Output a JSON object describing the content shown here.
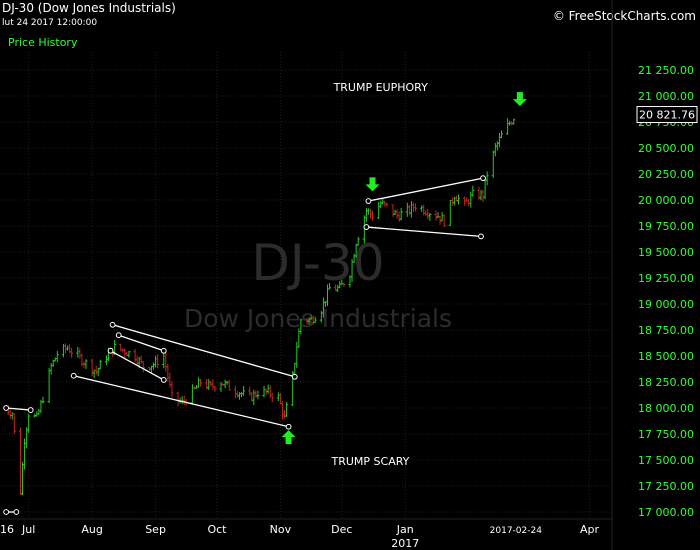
{
  "header": {
    "symbol_title": "DJ-30 (Dow Jones Industrials)",
    "datetime": "lut 24 2017 12:00:00",
    "price_history_label": "Price History",
    "brand": "© FreeStockCharts.com"
  },
  "watermark": {
    "symbol": "DJ-30",
    "name": "Dow Jones Industrials"
  },
  "colors": {
    "background": "#000000",
    "up_bar": "#22cc22",
    "down_bar": "#cc2222",
    "axis_text": "#33ff33",
    "trendline": "#ffffff",
    "arrow": "#22ee22",
    "watermark": "#2c2c2c"
  },
  "chart_data": {
    "type": "ohlc",
    "title": "DJ-30 (Dow Jones Industrials)",
    "ylim": [
      17000,
      21350
    ],
    "y_ticks": [
      17000,
      17250,
      17500,
      17750,
      18000,
      18250,
      18500,
      18750,
      19000,
      19250,
      19500,
      19750,
      20000,
      20250,
      20500,
      20750,
      21000,
      21250
    ],
    "y_tick_labels": [
      "17 000.00",
      "17 250.00",
      "17 500.00",
      "17 750.00",
      "18 000.00",
      "18 250.00",
      "18 500.00",
      "18 750.00",
      "19 000.00",
      "19 250.00",
      "19 500.00",
      "19 750.00",
      "20 000.00",
      "20 250.00",
      "20 500.00",
      "20 750.00",
      "21 000.00",
      "21 250.00"
    ],
    "last_price": 20821.76,
    "last_price_label": "20 821.76",
    "x_labels": [
      {
        "label": "16",
        "date": "2016-06-20"
      },
      {
        "label": "Jul",
        "date": "2016-07-01"
      },
      {
        "label": "Aug",
        "date": "2016-08-01"
      },
      {
        "label": "Sep",
        "date": "2016-09-01"
      },
      {
        "label": "Oct",
        "date": "2016-10-01"
      },
      {
        "label": "Nov",
        "date": "2016-11-01"
      },
      {
        "label": "Dec",
        "date": "2016-12-01"
      },
      {
        "label": "Jan",
        "date": "2017-01-01"
      },
      {
        "label": "2017-02-24",
        "date": "2017-02-24"
      },
      {
        "label": "Apr",
        "date": "2017-04-01"
      }
    ],
    "year_label": "2017",
    "closes": [
      {
        "date": "2016-06-20",
        "close": 18000
      },
      {
        "date": "2016-06-23",
        "close": 17950
      },
      {
        "date": "2016-06-27",
        "close": 17200
      },
      {
        "date": "2016-06-29",
        "close": 17700
      },
      {
        "date": "2016-07-01",
        "close": 17950
      },
      {
        "date": "2016-07-05",
        "close": 17900
      },
      {
        "date": "2016-07-08",
        "close": 18100
      },
      {
        "date": "2016-07-12",
        "close": 18400
      },
      {
        "date": "2016-07-15",
        "close": 18520
      },
      {
        "date": "2016-07-20",
        "close": 18580
      },
      {
        "date": "2016-07-25",
        "close": 18500
      },
      {
        "date": "2016-07-29",
        "close": 18430
      },
      {
        "date": "2016-08-03",
        "close": 18350
      },
      {
        "date": "2016-08-08",
        "close": 18500
      },
      {
        "date": "2016-08-12",
        "close": 18580
      },
      {
        "date": "2016-08-17",
        "close": 18550
      },
      {
        "date": "2016-08-22",
        "close": 18500
      },
      {
        "date": "2016-08-26",
        "close": 18400
      },
      {
        "date": "2016-08-31",
        "close": 18420
      },
      {
        "date": "2016-09-05",
        "close": 18500
      },
      {
        "date": "2016-09-09",
        "close": 18100
      },
      {
        "date": "2016-09-14",
        "close": 18050
      },
      {
        "date": "2016-09-19",
        "close": 18150
      },
      {
        "date": "2016-09-23",
        "close": 18250
      },
      {
        "date": "2016-09-28",
        "close": 18200
      },
      {
        "date": "2016-10-03",
        "close": 18250
      },
      {
        "date": "2016-10-07",
        "close": 18200
      },
      {
        "date": "2016-10-12",
        "close": 18150
      },
      {
        "date": "2016-10-17",
        "close": 18100
      },
      {
        "date": "2016-10-21",
        "close": 18150
      },
      {
        "date": "2016-10-26",
        "close": 18150
      },
      {
        "date": "2016-10-31",
        "close": 18100
      },
      {
        "date": "2016-11-03",
        "close": 17900
      },
      {
        "date": "2016-11-07",
        "close": 18300
      },
      {
        "date": "2016-11-09",
        "close": 18600
      },
      {
        "date": "2016-11-11",
        "close": 18850
      },
      {
        "date": "2016-11-16",
        "close": 18850
      },
      {
        "date": "2016-11-21",
        "close": 18950
      },
      {
        "date": "2016-11-25",
        "close": 19150
      },
      {
        "date": "2016-11-30",
        "close": 19150
      },
      {
        "date": "2016-12-05",
        "close": 19300
      },
      {
        "date": "2016-12-08",
        "close": 19600
      },
      {
        "date": "2016-12-13",
        "close": 19900
      },
      {
        "date": "2016-12-16",
        "close": 19850
      },
      {
        "date": "2016-12-20",
        "close": 19970
      },
      {
        "date": "2016-12-23",
        "close": 19930
      },
      {
        "date": "2016-12-28",
        "close": 19850
      },
      {
        "date": "2017-01-03",
        "close": 19900
      },
      {
        "date": "2017-01-06",
        "close": 19950
      },
      {
        "date": "2017-01-11",
        "close": 19900
      },
      {
        "date": "2017-01-17",
        "close": 19850
      },
      {
        "date": "2017-01-20",
        "close": 19800
      },
      {
        "date": "2017-01-25",
        "close": 20050
      },
      {
        "date": "2017-01-30",
        "close": 19950
      },
      {
        "date": "2017-02-03",
        "close": 20050
      },
      {
        "date": "2017-02-08",
        "close": 20050
      },
      {
        "date": "2017-02-10",
        "close": 20250
      },
      {
        "date": "2017-02-14",
        "close": 20500
      },
      {
        "date": "2017-02-17",
        "close": 20620
      },
      {
        "date": "2017-02-21",
        "close": 20740
      },
      {
        "date": "2017-02-24",
        "close": 20821.76
      }
    ],
    "trendlines": [
      {
        "from": {
          "date": "2016-06-20",
          "value": 18000
        },
        "to": {
          "date": "2016-07-02",
          "value": 17980
        }
      },
      {
        "from": {
          "date": "2016-06-20",
          "value": 17000
        },
        "to": {
          "date": "2016-06-25",
          "value": 17000
        }
      },
      {
        "from": {
          "date": "2016-07-23",
          "value": 18310
        },
        "to": {
          "date": "2016-11-05",
          "value": 17820
        }
      },
      {
        "from": {
          "date": "2016-08-11",
          "value": 18800
        },
        "to": {
          "date": "2016-11-08",
          "value": 18300
        }
      },
      {
        "from": {
          "date": "2016-08-14",
          "value": 18700
        },
        "to": {
          "date": "2016-09-05",
          "value": 18550
        }
      },
      {
        "from": {
          "date": "2016-08-10",
          "value": 18550
        },
        "to": {
          "date": "2016-09-05",
          "value": 18270
        }
      },
      {
        "from": {
          "date": "2016-12-14",
          "value": 19990
        },
        "to": {
          "date": "2017-02-08",
          "value": 20210
        }
      },
      {
        "from": {
          "date": "2016-12-13",
          "value": 19740
        },
        "to": {
          "date": "2017-02-07",
          "value": 19650
        }
      }
    ],
    "annotations": [
      {
        "text": "TRUMP EUPHORY",
        "date": "2016-12-20",
        "value": 21050
      },
      {
        "text": "TRUMP SCARY",
        "date": "2016-12-15",
        "value": 17450
      }
    ],
    "arrows": [
      {
        "direction": "down",
        "date": "2016-12-16",
        "value": 20150
      },
      {
        "direction": "down",
        "date": "2017-02-26",
        "value": 20970
      },
      {
        "direction": "up",
        "date": "2016-11-05",
        "value": 17720
      }
    ]
  }
}
